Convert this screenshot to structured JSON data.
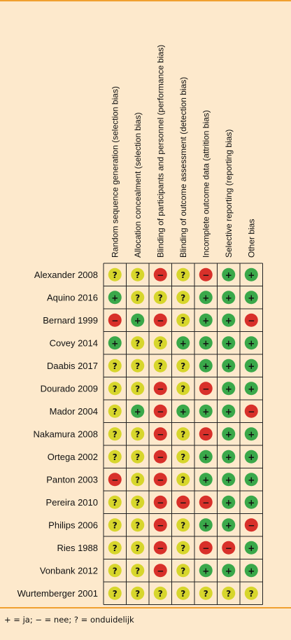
{
  "chart_data": {
    "type": "table",
    "title": "",
    "columns": [
      "Random sequence generation (selection bias)",
      "Allocation concealment (selection bias)",
      "Blinding of participants and personnel (performance bias)",
      "Blinding of outcome assessment (detection bias)",
      "Incomplete outcome data (attrition bias)",
      "Selective reporting (reporting bias)",
      "Other bias"
    ],
    "rows": [
      "Alexander 2008",
      "Aquino 2016",
      "Bernard 1999",
      "Covey 2014",
      "Daabis 2017",
      "Dourado 2009",
      "Mador 2004",
      "Nakamura 2008",
      "Ortega 2002",
      "Panton 2003",
      "Pereira 2010",
      "Philips 2006",
      "Ries 1988",
      "Vonbank 2012",
      "Wurtemberger 2001"
    ],
    "values": [
      [
        "?",
        "?",
        "-",
        "?",
        "-",
        "+",
        "+"
      ],
      [
        "+",
        "?",
        "?",
        "?",
        "+",
        "+",
        "+"
      ],
      [
        "-",
        "+",
        "-",
        "?",
        "+",
        "+",
        "-"
      ],
      [
        "+",
        "?",
        "?",
        "+",
        "+",
        "+",
        "+"
      ],
      [
        "?",
        "?",
        "?",
        "?",
        "+",
        "+",
        "+"
      ],
      [
        "?",
        "?",
        "-",
        "?",
        "-",
        "+",
        "+"
      ],
      [
        "?",
        "+",
        "-",
        "+",
        "+",
        "+",
        "-"
      ],
      [
        "?",
        "?",
        "-",
        "?",
        "-",
        "+",
        "+"
      ],
      [
        "?",
        "?",
        "-",
        "?",
        "+",
        "+",
        "+"
      ],
      [
        "-",
        "?",
        "-",
        "?",
        "+",
        "+",
        "+"
      ],
      [
        "?",
        "?",
        "-",
        "-",
        "-",
        "+",
        "+"
      ],
      [
        "?",
        "?",
        "-",
        "?",
        "+",
        "+",
        "-"
      ],
      [
        "?",
        "?",
        "-",
        "?",
        "-",
        "-",
        "+"
      ],
      [
        "?",
        "?",
        "-",
        "?",
        "+",
        "+",
        "+"
      ],
      [
        "?",
        "?",
        "?",
        "?",
        "?",
        "?",
        "?"
      ]
    ],
    "colors": {
      "+": "#3aa84a",
      "-": "#d8302a",
      "?": "#d7d62c"
    }
  },
  "legend": "+ = ja; − = nee; ? = onduidelijk"
}
